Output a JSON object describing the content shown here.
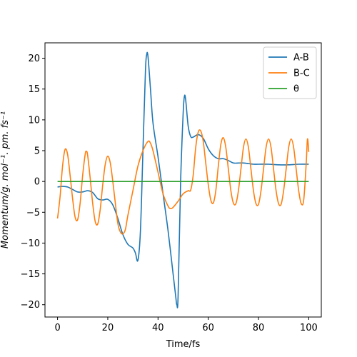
{
  "chart_data": {
    "type": "line",
    "xlabel": "Time/fs",
    "ylabel": "Momentum/g. mol⁻¹. pm. fs⁻¹",
    "xlim": [
      -5,
      105
    ],
    "ylim": [
      -22,
      22.5
    ],
    "x_ticks": [
      0,
      20,
      40,
      60,
      80,
      100
    ],
    "y_ticks": [
      -20,
      -15,
      -10,
      -5,
      0,
      5,
      10,
      15,
      20
    ],
    "x_tick_labels": [
      "0",
      "20",
      "40",
      "60",
      "80",
      "100"
    ],
    "y_tick_labels": [
      "−20",
      "−15",
      "−10",
      "−5",
      "0",
      "5",
      "10",
      "15",
      "20"
    ],
    "grid": false,
    "legend_position": "top-right",
    "series": [
      {
        "name": "A-B",
        "color": "#1f77b4",
        "points": [
          [
            0,
            -0.9
          ],
          [
            2,
            -0.8
          ],
          [
            4,
            -0.9
          ],
          [
            6,
            -1.3
          ],
          [
            8,
            -1.7
          ],
          [
            10,
            -1.7
          ],
          [
            12,
            -1.5
          ],
          [
            14,
            -1.8
          ],
          [
            16,
            -2.8
          ],
          [
            18,
            -3.0
          ],
          [
            20,
            -2.9
          ],
          [
            22,
            -3.8
          ],
          [
            24,
            -6.0
          ],
          [
            26,
            -8.6
          ],
          [
            28,
            -10.2
          ],
          [
            30,
            -10.8
          ],
          [
            31,
            -11.6
          ],
          [
            32,
            -12.8
          ],
          [
            33,
            -8.0
          ],
          [
            34,
            5.0
          ],
          [
            35,
            18.0
          ],
          [
            35.5,
            20.6
          ],
          [
            36,
            20.3
          ],
          [
            37,
            15.0
          ],
          [
            38,
            9.5
          ],
          [
            40,
            4.0
          ],
          [
            42,
            -2.0
          ],
          [
            44,
            -8.0
          ],
          [
            46,
            -15.0
          ],
          [
            47,
            -18.5
          ],
          [
            47.5,
            -20.0
          ],
          [
            48,
            -18.5
          ],
          [
            49,
            0.0
          ],
          [
            50,
            11.0
          ],
          [
            50.5,
            13.8
          ],
          [
            51,
            13.3
          ],
          [
            52,
            9.0
          ],
          [
            53,
            7.3
          ],
          [
            54,
            7.2
          ],
          [
            56,
            7.6
          ],
          [
            58,
            7.0
          ],
          [
            60,
            5.3
          ],
          [
            62,
            4.2
          ],
          [
            64,
            3.7
          ],
          [
            66,
            3.7
          ],
          [
            68,
            3.4
          ],
          [
            70,
            3.0
          ],
          [
            72,
            3.0
          ],
          [
            74,
            3.0
          ],
          [
            76,
            2.9
          ],
          [
            78,
            2.8
          ],
          [
            80,
            2.8
          ],
          [
            84,
            2.8
          ],
          [
            88,
            2.7
          ],
          [
            92,
            2.7
          ],
          [
            96,
            2.8
          ],
          [
            100,
            2.8
          ]
        ]
      },
      {
        "name": "B-C",
        "color": "#ff7f0e",
        "points": [
          [
            0,
            -6.0
          ],
          [
            1,
            -2.5
          ],
          [
            2,
            2.5
          ],
          [
            3,
            5.2
          ],
          [
            4,
            4.4
          ],
          [
            5,
            1.0
          ],
          [
            6,
            -2.8
          ],
          [
            7,
            -5.8
          ],
          [
            8,
            -6.2
          ],
          [
            9,
            -3.5
          ],
          [
            10,
            1.0
          ],
          [
            11,
            4.4
          ],
          [
            11.5,
            4.9
          ],
          [
            12,
            4.2
          ],
          [
            13,
            0.5
          ],
          [
            14,
            -3.6
          ],
          [
            15,
            -6.5
          ],
          [
            16,
            -6.9
          ],
          [
            17,
            -4.5
          ],
          [
            18,
            -0.5
          ],
          [
            19,
            2.8
          ],
          [
            20,
            4.1
          ],
          [
            21,
            3.0
          ],
          [
            22,
            0.0
          ],
          [
            23,
            -3.5
          ],
          [
            24,
            -6.8
          ],
          [
            25,
            -8.2
          ],
          [
            26,
            -8.5
          ],
          [
            27,
            -7.8
          ],
          [
            28,
            -5.5
          ],
          [
            30,
            -1.5
          ],
          [
            32,
            2.5
          ],
          [
            34,
            5.0
          ],
          [
            36,
            6.5
          ],
          [
            37,
            6.2
          ],
          [
            38,
            5.0
          ],
          [
            40,
            1.5
          ],
          [
            42,
            -2.0
          ],
          [
            44,
            -4.0
          ],
          [
            45,
            -4.4
          ],
          [
            46,
            -4.2
          ],
          [
            48,
            -3.2
          ],
          [
            50,
            -2.0
          ],
          [
            52,
            -1.5
          ],
          [
            53,
            -1.4
          ],
          [
            54,
            1.0
          ],
          [
            55,
            5.5
          ],
          [
            56,
            8.0
          ],
          [
            57,
            8.2
          ],
          [
            58,
            6.5
          ],
          [
            59,
            3.0
          ],
          [
            60,
            -0.5
          ],
          [
            61,
            -3.0
          ],
          [
            62,
            -3.5
          ],
          [
            63,
            -1.5
          ],
          [
            64,
            2.5
          ],
          [
            65,
            6.0
          ],
          [
            66,
            7.1
          ],
          [
            67,
            5.5
          ],
          [
            68,
            2.0
          ],
          [
            69,
            -1.5
          ],
          [
            70,
            -3.5
          ],
          [
            71,
            -3.6
          ],
          [
            72,
            -1.5
          ],
          [
            73,
            2.0
          ],
          [
            74,
            5.5
          ],
          [
            75,
            6.9
          ],
          [
            76,
            5.5
          ],
          [
            77,
            2.0
          ],
          [
            78,
            -1.5
          ],
          [
            79,
            -3.6
          ],
          [
            80,
            -3.7
          ],
          [
            81,
            -1.5
          ],
          [
            82,
            2.0
          ],
          [
            83,
            5.5
          ],
          [
            84,
            6.9
          ],
          [
            85,
            5.5
          ],
          [
            86,
            2.0
          ],
          [
            87,
            -1.5
          ],
          [
            88,
            -3.6
          ],
          [
            89,
            -3.7
          ],
          [
            90,
            -1.5
          ],
          [
            91,
            2.0
          ],
          [
            92,
            5.5
          ],
          [
            93,
            6.9
          ],
          [
            94,
            5.5
          ],
          [
            95,
            2.0
          ],
          [
            96,
            -1.5
          ],
          [
            97,
            -3.6
          ],
          [
            98,
            -3.0
          ],
          [
            99,
            3.0
          ],
          [
            99.5,
            6.9
          ],
          [
            100,
            4.8
          ]
        ]
      },
      {
        "name": "θ",
        "color": "#2ca02c",
        "points": [
          [
            0,
            0
          ],
          [
            100,
            0
          ]
        ]
      }
    ]
  }
}
